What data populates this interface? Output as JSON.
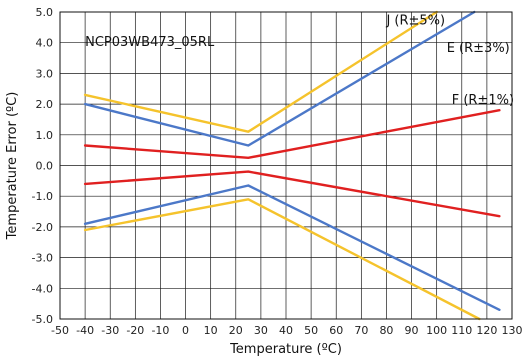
{
  "chart_data": {
    "type": "line",
    "title": "",
    "xlabel": "Temperature (ºC)",
    "ylabel": "Temperature Error (ºC)",
    "xlim": [
      -50,
      130
    ],
    "ylim": [
      -5.0,
      5.0
    ],
    "x_ticks": [
      "-50",
      "-40",
      "-30",
      "-20",
      "-10",
      "0",
      "10",
      "20",
      "30",
      "40",
      "50",
      "60",
      "70",
      "80",
      "90",
      "100",
      "110",
      "120",
      "130"
    ],
    "y_ticks": [
      "-5.0",
      "-4.0",
      "-3.0",
      "-2.0",
      "-1.0",
      "0.0",
      "1.0",
      "2.0",
      "3.0",
      "4.0",
      "5.0"
    ],
    "grid": true,
    "legend": "none",
    "annotations": [
      {
        "text": "NCP03WB473_05RL",
        "x": -40,
        "y": 3.9
      },
      {
        "text": "J (R±5%)",
        "x": 80,
        "y": 4.6
      },
      {
        "text": "E (R±3%)",
        "x": 104,
        "y": 3.7
      },
      {
        "text": "F (R±1%)",
        "x": 106,
        "y": 2.0
      }
    ],
    "series": [
      {
        "color": "#f5c32c",
        "x": [
          -40,
          25,
          100
        ],
        "y": [
          2.3,
          1.1,
          5.0
        ]
      },
      {
        "color": "#f5c32c",
        "x": [
          -40,
          25,
          117
        ],
        "y": [
          -2.1,
          -1.1,
          -5.0
        ]
      },
      {
        "color": "#4c78c8",
        "x": [
          -40,
          25,
          115
        ],
        "y": [
          2.0,
          0.65,
          5.0
        ]
      },
      {
        "color": "#4c78c8",
        "x": [
          -40,
          25,
          125
        ],
        "y": [
          -1.9,
          -0.65,
          -4.7
        ]
      },
      {
        "color": "#e02020",
        "x": [
          -40,
          25,
          125
        ],
        "y": [
          0.65,
          0.25,
          1.8
        ]
      },
      {
        "color": "#e02020",
        "x": [
          -40,
          25,
          125
        ],
        "y": [
          -0.6,
          -0.2,
          -1.65
        ]
      }
    ]
  }
}
